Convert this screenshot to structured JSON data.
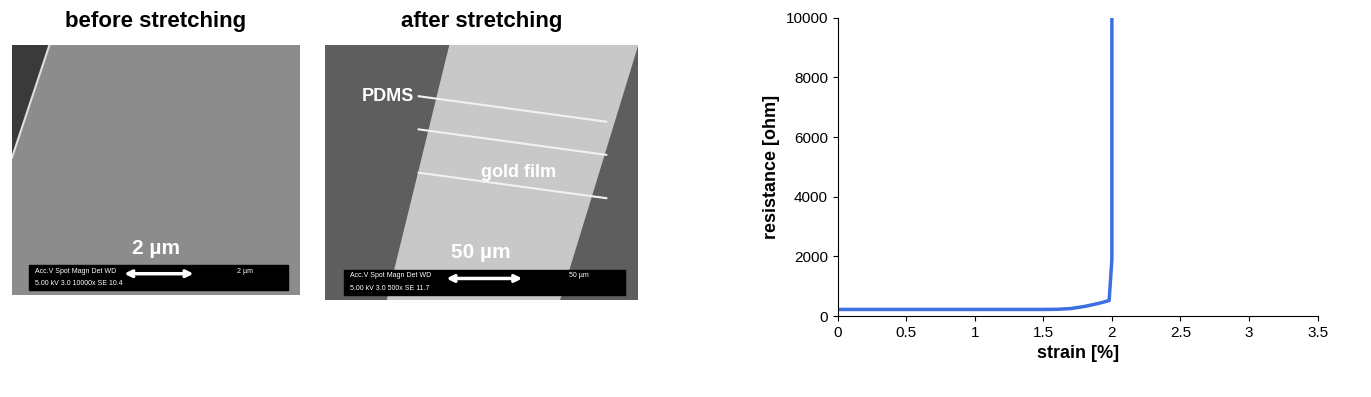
{
  "images": [
    {
      "title": "before stretching",
      "scale_label": "2 µm",
      "info": [
        "Acc.V Spot Magn Det WD",
        "5.00 kV 3.0 10000x SE 10.4"
      ],
      "info_scale": "2 µm",
      "labels": []
    },
    {
      "title": "after stretching",
      "scale_label": "50 µm",
      "info": [
        "Acc.V Spot Magn Det WD",
        "5.00 kV 3.0 500x SE 11.7"
      ],
      "info_scale": "50 µm",
      "labels": [
        "PDMS",
        "gold film"
      ]
    }
  ],
  "chart_data": {
    "type": "line",
    "x_label": "strain [%]",
    "y_label": "resistance [ohm]",
    "color": "#3d6fe0",
    "grid": false,
    "x": [
      0,
      0.5,
      1,
      1.5,
      1.6,
      1.7,
      1.8,
      1.9,
      1.95,
      1.98,
      2.0,
      2.0
    ],
    "values": [
      220,
      220,
      220,
      220,
      225,
      250,
      320,
      420,
      480,
      520,
      1900,
      10000
    ],
    "xlim": [
      0,
      3.5
    ],
    "xticks": [
      0,
      0.5,
      1,
      1.5,
      2,
      2.5,
      3,
      3.5
    ],
    "ylim": [
      0,
      10000
    ],
    "yticks": [
      0,
      2000,
      4000,
      6000,
      8000,
      10000
    ]
  }
}
